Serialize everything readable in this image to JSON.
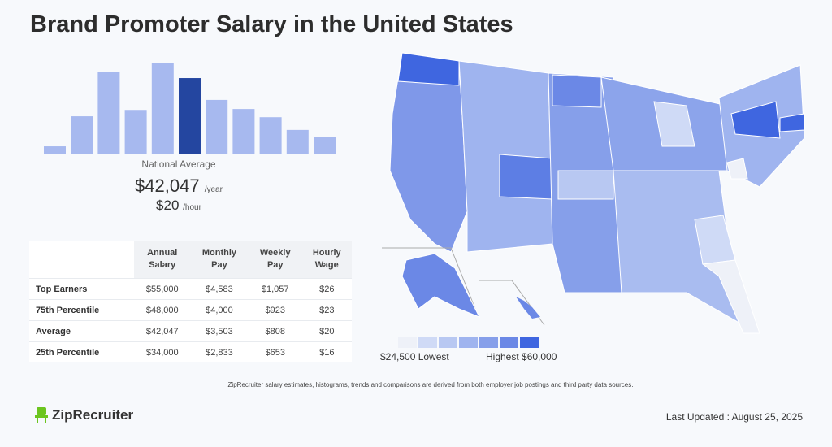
{
  "title": "Brand Promoter Salary in the United States",
  "chart_data": {
    "type": "bar",
    "title": "",
    "values_relative_height": [
      8,
      41,
      90,
      48,
      100,
      83,
      59,
      49,
      40,
      26,
      18
    ],
    "highlight_index": 5,
    "colors": {
      "bar": "#a7b9ef",
      "highlight": "#2446a0"
    }
  },
  "national_average": {
    "label": "National Average",
    "yearly": "$42,047",
    "yearly_unit": "/year",
    "hourly": "$20",
    "hourly_unit": "/hour"
  },
  "table": {
    "headers": [
      [
        "Annual",
        "Salary"
      ],
      [
        "Monthly",
        "Pay"
      ],
      [
        "Weekly",
        "Pay"
      ],
      [
        "Hourly",
        "Wage"
      ]
    ],
    "rows": [
      {
        "label": "Top Earners",
        "values": [
          "$55,000",
          "$4,583",
          "$1,057",
          "$26"
        ]
      },
      {
        "label": "75th Percentile",
        "values": [
          "$48,000",
          "$4,000",
          "$923",
          "$23"
        ]
      },
      {
        "label": "Average",
        "values": [
          "$42,047",
          "$3,503",
          "$808",
          "$20"
        ]
      },
      {
        "label": "25th Percentile",
        "values": [
          "$34,000",
          "$2,833",
          "$653",
          "$16"
        ]
      }
    ]
  },
  "map_legend": {
    "low": "$24,500 Lowest",
    "high": "Highest $60,000",
    "colors": [
      "#eef1f8",
      "#cfdaf6",
      "#b8c8f2",
      "#9fb4ef",
      "#869fea",
      "#6b88e6",
      "#3f66e0"
    ]
  },
  "disclaimer": "ZipRecruiter salary estimates, histograms, trends and comparisons are derived from both employer job postings and third party data sources.",
  "logo": "ZipRecruiter",
  "last_updated": "Last Updated : August 25, 2025"
}
